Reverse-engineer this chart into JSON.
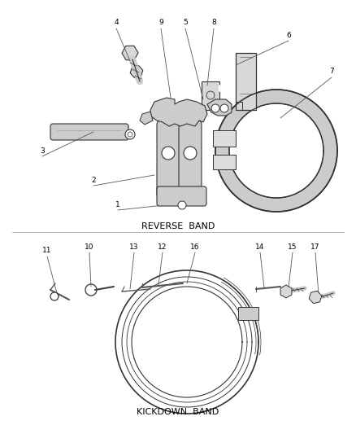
{
  "background_color": "#ffffff",
  "reverse_band_label": "REVERSE  BAND",
  "kickdown_band_label": "KICKDOWN  BAND",
  "text_color": "#000000",
  "line_color": "#333333",
  "part_fill": "#e8e8e8",
  "label_fontsize": 7.5,
  "figsize": [
    4.38,
    5.33
  ],
  "dpi": 100
}
